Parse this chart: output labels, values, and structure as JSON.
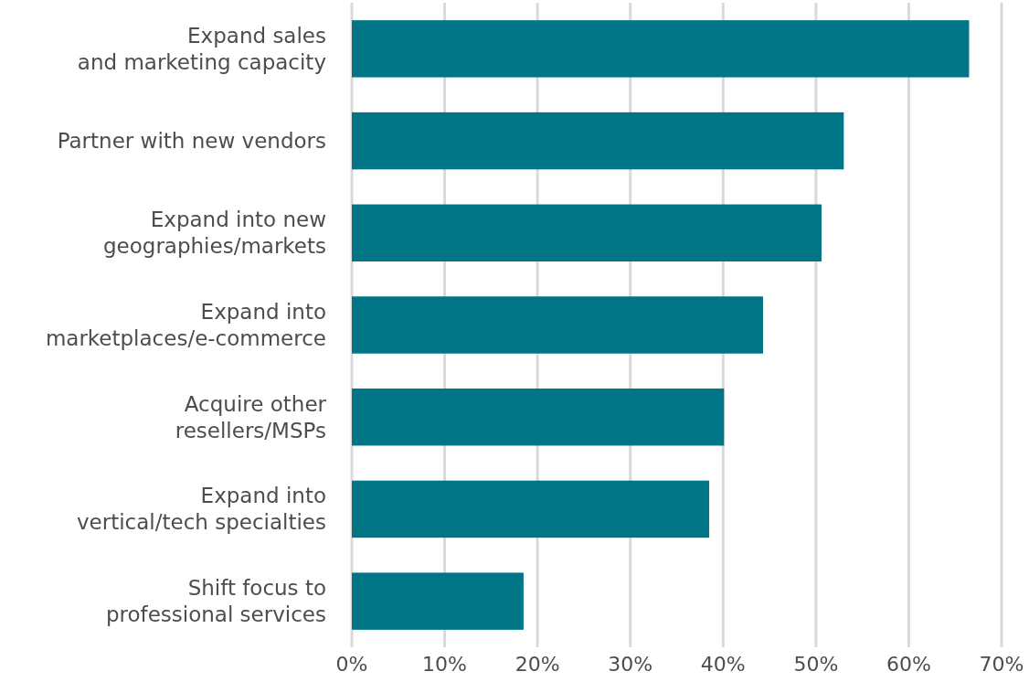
{
  "chart_data": {
    "type": "bar",
    "orientation": "horizontal",
    "categories": [
      "Expand sales\nand marketing capacity",
      "Partner with new vendors",
      "Expand into new\ngeographies/markets",
      "Expand into\nmarketplaces/e-commerce",
      "Acquire other\nresellers/MSPs",
      "Expand into\nvertical/tech specialties",
      "Shift focus to\nprofessional services"
    ],
    "values": [
      66.5,
      53,
      50.6,
      44.3,
      40.1,
      38.5,
      18.5
    ],
    "color": "#007585",
    "xlim": [
      0,
      70
    ],
    "xticks": [
      {
        "value": 0,
        "label": "0%"
      },
      {
        "value": 10,
        "label": "10%"
      },
      {
        "value": 20,
        "label": "20%"
      },
      {
        "value": 30,
        "label": "30%"
      },
      {
        "value": 40,
        "label": "40%"
      },
      {
        "value": 50,
        "label": "50%"
      },
      {
        "value": 60,
        "label": "60%"
      },
      {
        "value": 70,
        "label": "70%"
      }
    ],
    "grid": "x"
  }
}
